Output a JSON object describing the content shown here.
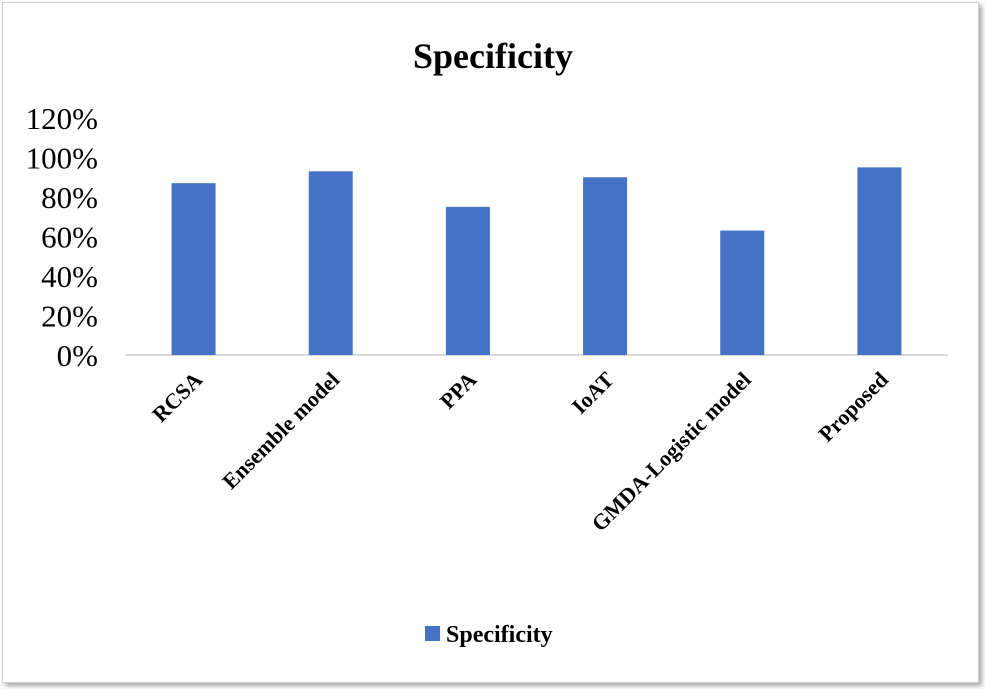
{
  "chart_data": {
    "type": "bar",
    "title": "Specificity",
    "xlabel": "",
    "ylabel": "",
    "categories": [
      "RCSA",
      "Ensemble model",
      "PPA",
      "IoAT",
      "GMDA-Logistic model",
      "Proposed"
    ],
    "series": [
      {
        "name": "Specificity",
        "values": [
          0.87,
          0.93,
          0.75,
          0.9,
          0.63,
          0.95
        ],
        "color": "#4472c4"
      }
    ],
    "ylim": [
      0,
      1.2
    ],
    "yticks": [
      0,
      0.2,
      0.4,
      0.6,
      0.8,
      1.0,
      1.2
    ],
    "ytick_labels": [
      "0%",
      "20%",
      "40%",
      "60%",
      "80%",
      "100%",
      "120%"
    ],
    "grid": false,
    "legend_position": "bottom"
  }
}
